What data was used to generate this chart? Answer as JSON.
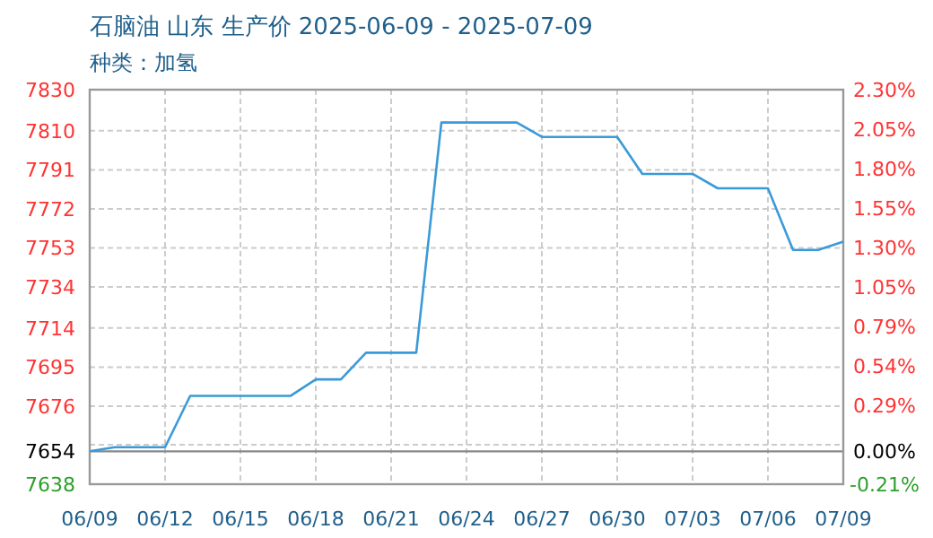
{
  "chart_data": {
    "type": "line",
    "title": "石脑油 山东 生产价 2025-06-09 - 2025-07-09",
    "subtitle": "种类：加氢",
    "x": [
      "2025-06-09",
      "2025-06-10",
      "2025-06-11",
      "2025-06-12",
      "2025-06-13",
      "2025-06-14",
      "2025-06-15",
      "2025-06-16",
      "2025-06-17",
      "2025-06-18",
      "2025-06-19",
      "2025-06-20",
      "2025-06-21",
      "2025-06-22",
      "2025-06-23",
      "2025-06-24",
      "2025-06-25",
      "2025-06-26",
      "2025-06-27",
      "2025-06-28",
      "2025-06-29",
      "2025-06-30",
      "2025-07-01",
      "2025-07-02",
      "2025-07-03",
      "2025-07-04",
      "2025-07-05",
      "2025-07-06",
      "2025-07-07",
      "2025-07-08",
      "2025-07-09"
    ],
    "series": [
      {
        "color": "#3a9ad9",
        "values": [
          7654,
          7656,
          7656,
          7656,
          7681,
          7681,
          7681,
          7681,
          7681,
          7689,
          7689,
          7702,
          7702,
          7702,
          7814,
          7814,
          7814,
          7814,
          7807,
          7807,
          7807,
          7807,
          7789,
          7789,
          7789,
          7782,
          7782,
          7782,
          7752,
          7752,
          7756
        ]
      }
    ],
    "xlim": [
      "2025-06-09",
      "2025-07-09"
    ],
    "xticks": [
      {
        "value": "2025-06-09",
        "label": "06/09"
      },
      {
        "value": "2025-06-12",
        "label": "06/12"
      },
      {
        "value": "2025-06-15",
        "label": "06/15"
      },
      {
        "value": "2025-06-18",
        "label": "06/18"
      },
      {
        "value": "2025-06-21",
        "label": "06/21"
      },
      {
        "value": "2025-06-24",
        "label": "06/24"
      },
      {
        "value": "2025-06-27",
        "label": "06/27"
      },
      {
        "value": "2025-06-30",
        "label": "06/30"
      },
      {
        "value": "2025-07-03",
        "label": "07/03"
      },
      {
        "value": "2025-07-06",
        "label": "07/06"
      },
      {
        "value": "2025-07-09",
        "label": "07/09"
      }
    ],
    "ylim": [
      7638,
      7830
    ],
    "yticks": [
      7638,
      {
        "value": 7654,
        "label": "7654"
      },
      {
        "value": 7657.2,
        "label": null
      },
      7676,
      7695,
      7714,
      7734,
      7753,
      7772,
      7791,
      7810,
      7830
    ],
    "y2lim": [
      -0.209,
      2.299
    ],
    "y2ticks": [
      {
        "value": -0.209,
        "label": "-0.21%"
      },
      {
        "value": 0,
        "label": "0.00%"
      },
      {
        "value": 0.292,
        "label": "0.29%"
      },
      {
        "value": 0.543,
        "label": "0.54%"
      },
      {
        "value": 0.794,
        "label": "0.79%"
      },
      {
        "value": 1.045,
        "label": "1.05%"
      },
      {
        "value": 1.296,
        "label": "1.30%"
      },
      {
        "value": 1.547,
        "label": "1.55%"
      },
      {
        "value": 1.798,
        "label": "1.80%"
      },
      {
        "value": 2.049,
        "label": "2.05%"
      },
      {
        "value": 2.299,
        "label": "2.30%"
      }
    ],
    "ref_lines": [
      {
        "axis": "y",
        "value": 7654,
        "color": "#888888"
      }
    ],
    "grid": true,
    "marker": "none",
    "line_style": "solid"
  }
}
